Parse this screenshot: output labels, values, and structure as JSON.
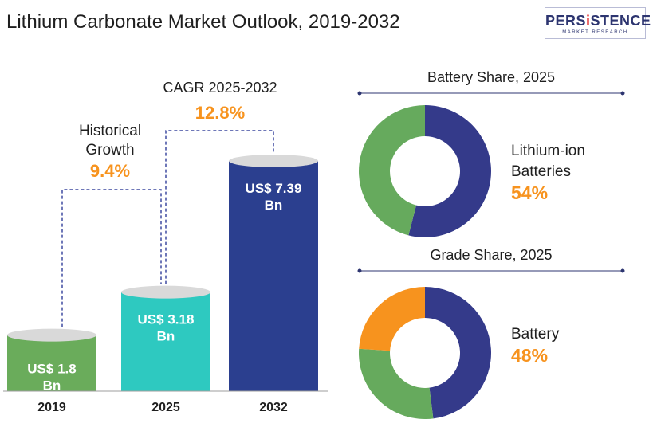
{
  "title": "Lithium Carbonate Market Outlook, 2019-2032",
  "logo": {
    "main_prefix": "PERS",
    "main_accent": "i",
    "main_suffix": "STENCE",
    "sub": "MARKET RESEARCH"
  },
  "chart_data": [
    {
      "type": "bar",
      "categories": [
        "2019",
        "2025",
        "2032"
      ],
      "values": [
        1.8,
        3.18,
        7.39
      ],
      "value_labels": [
        [
          "US$ 1.8",
          "Bn"
        ],
        [
          "US$ 3.18",
          "Bn"
        ],
        [
          "US$ 7.39",
          "Bn"
        ]
      ],
      "colors": [
        "#6aac5b",
        "#2ec9c0",
        "#2b3f8f"
      ],
      "top_color": "#d9d9d9",
      "annotations": [
        {
          "label_lines": [
            "Historical",
            "Growth"
          ],
          "value": "9.4%"
        },
        {
          "label_lines": [
            "CAGR 2025-2032"
          ],
          "value": "12.8%"
        }
      ]
    },
    {
      "type": "pie",
      "title": "Battery Share, 2025",
      "slices": [
        {
          "value": 54,
          "color": "#343a8a"
        },
        {
          "value": 46,
          "color": "#66aa5d"
        }
      ],
      "highlight_label": [
        "Lithium-ion",
        "Batteries"
      ],
      "highlight_value": "54%"
    },
    {
      "type": "pie",
      "title": "Grade Share, 2025",
      "slices": [
        {
          "value": 48,
          "color": "#343a8a"
        },
        {
          "value": 28,
          "color": "#66aa5d"
        },
        {
          "value": 24,
          "color": "#f7931e"
        }
      ],
      "highlight_label": [
        "Battery"
      ],
      "highlight_value": "48%"
    }
  ],
  "colors": {
    "accent_orange": "#f7931e",
    "dash": "#3f4aa0",
    "title_text": "#1f1f1f",
    "divider": "#2d3570"
  }
}
